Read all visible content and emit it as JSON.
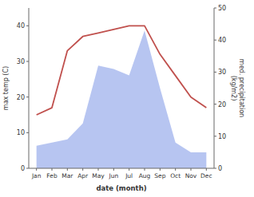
{
  "chart_data": {
    "type": "line",
    "xlabel": "date (month)",
    "ylabel": "max temp (C)",
    "y2label": "med. precipitation\n(kg/m2)",
    "categories": [
      "Jan",
      "Feb",
      "Mar",
      "Apr",
      "May",
      "Jun",
      "Jul",
      "Aug",
      "Sep",
      "Oct",
      "Nov",
      "Dec"
    ],
    "series": [
      {
        "type": "area",
        "axis": "y2",
        "color": "#aabbee",
        "values": [
          7,
          8,
          9,
          14,
          32,
          31,
          29,
          43,
          25,
          8,
          5,
          5
        ]
      },
      {
        "type": "line",
        "color": "#c0504d",
        "values": [
          15,
          17,
          33,
          37,
          38,
          39,
          40,
          40,
          32,
          26,
          20,
          17
        ]
      }
    ],
    "ylim": [
      0,
      45
    ],
    "yticks": [
      0,
      10,
      20,
      30,
      40
    ],
    "y2lim": [
      0,
      50
    ],
    "y2ticks": [
      0,
      10,
      20,
      30,
      40,
      50
    ],
    "grid": false
  }
}
